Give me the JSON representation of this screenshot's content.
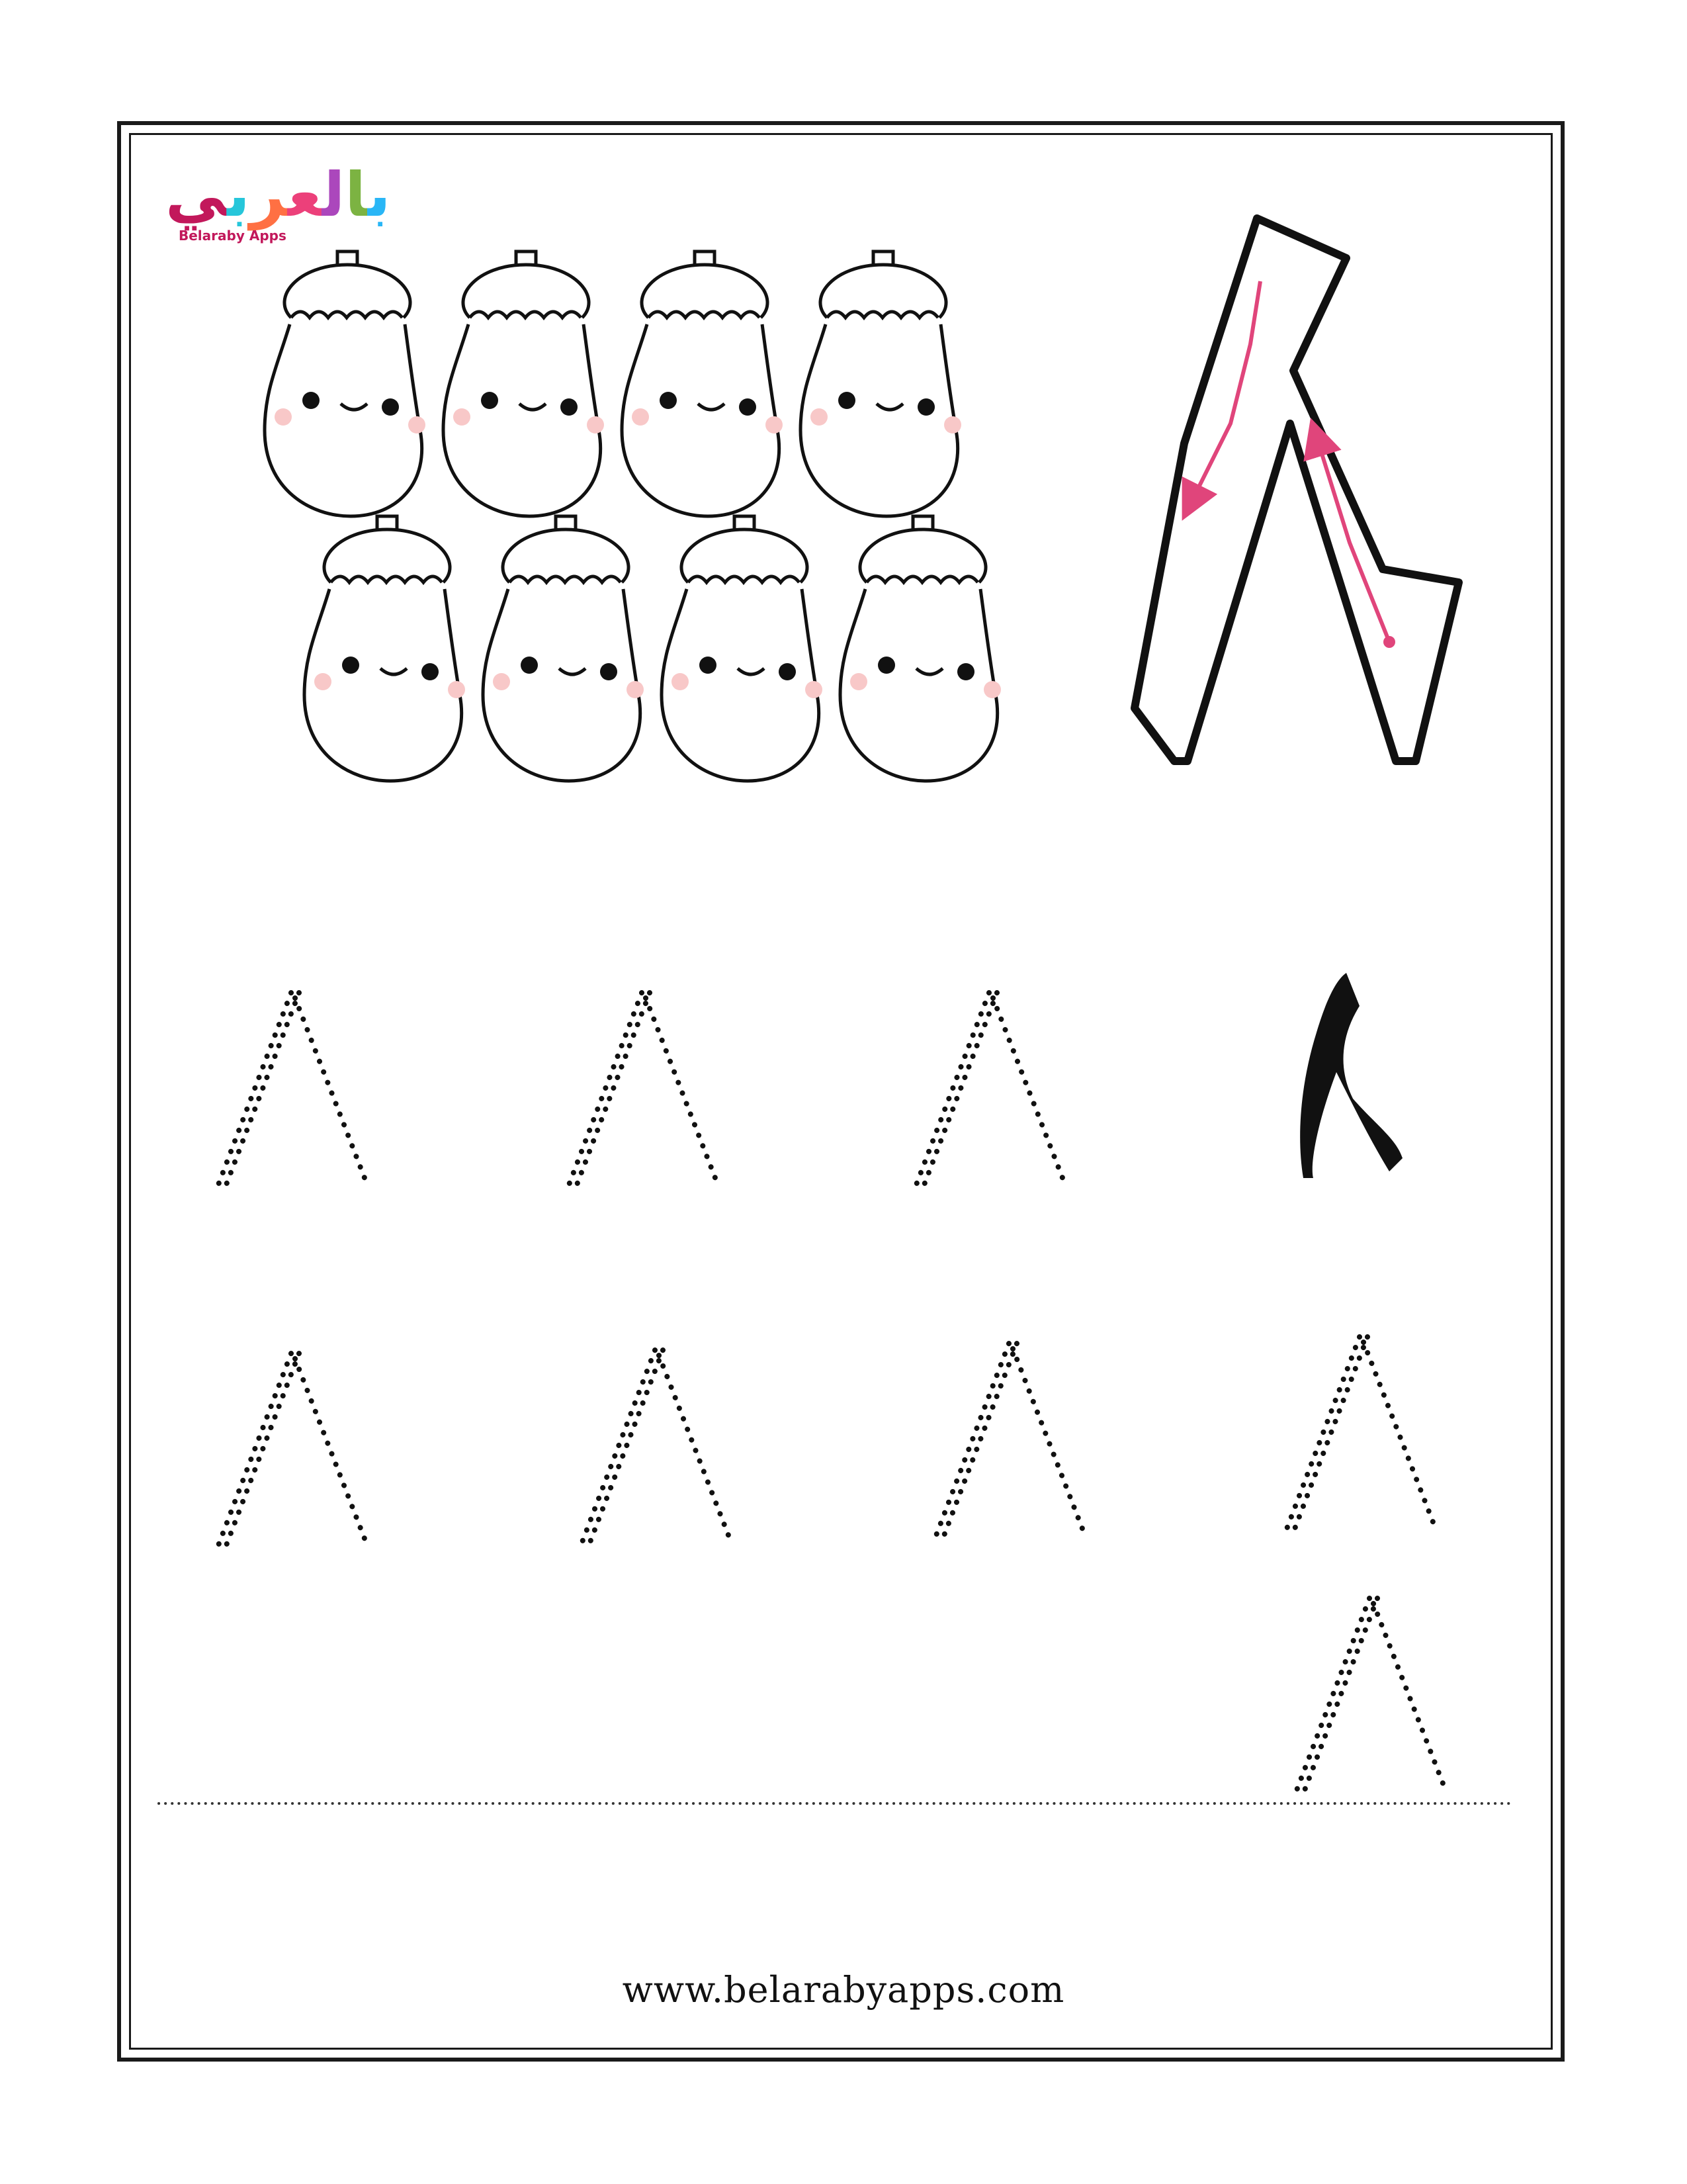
{
  "logo": {
    "arabic_text": "بالعربي",
    "english_text": "Belaraby Apps",
    "letter_colors": [
      "#29b6f6",
      "#7cb342",
      "#ab47bc",
      "#ec407a",
      "#ff7043",
      "#26c6da",
      "#c2185b"
    ]
  },
  "worksheet": {
    "digit": "٨",
    "arrow_color": "#e0457b",
    "cheek_color": "#f8c8c8",
    "counting_items": 8,
    "counting_icon": "eggplant-icon",
    "trace_rows": [
      {
        "dotted_digits": 3,
        "has_solid_example": true
      },
      {
        "dotted_digits": 4,
        "has_solid_example": false
      },
      {
        "dotted_digits": 1,
        "has_solid_example": false
      }
    ]
  },
  "footer": {
    "website": "www.belarabyapps.com"
  }
}
